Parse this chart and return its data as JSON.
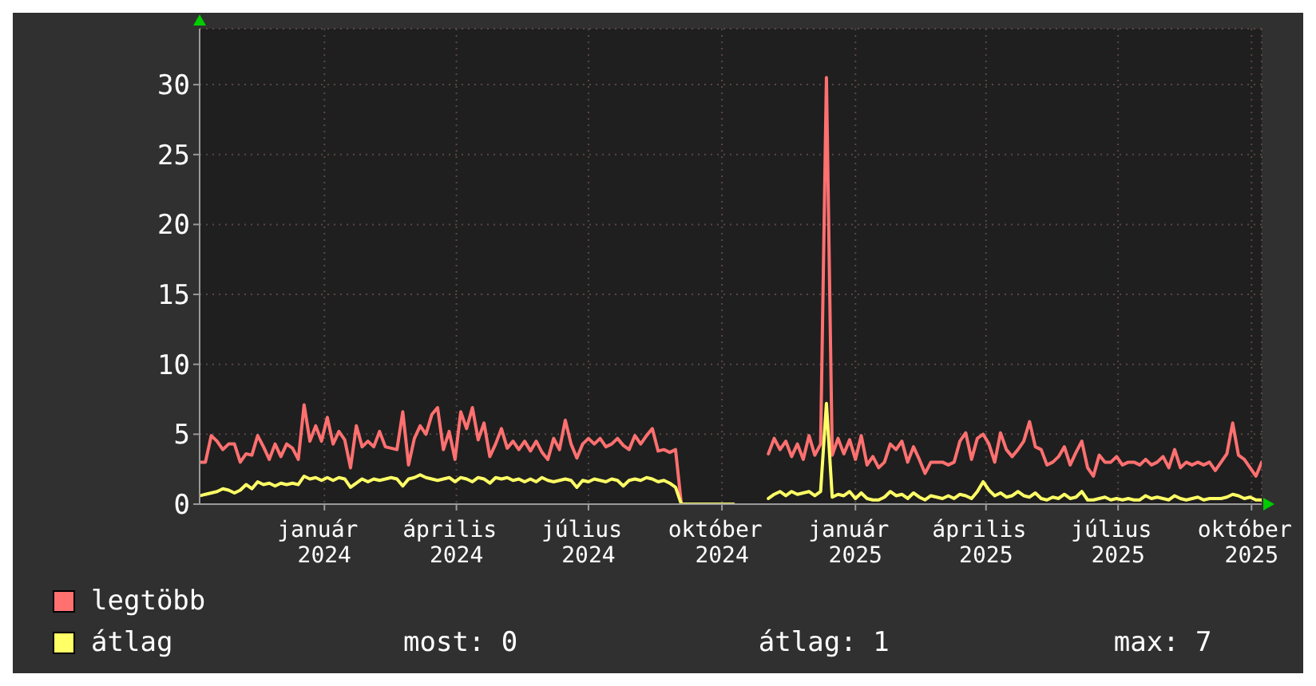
{
  "chart_data": {
    "type": "line",
    "x": [
      "2023-10-07",
      "2023-10-11",
      "2023-10-15",
      "2023-10-19",
      "2023-10-23",
      "2023-10-27",
      "2023-10-31",
      "2023-11-04",
      "2023-11-08",
      "2023-11-12",
      "2023-11-16",
      "2023-11-20",
      "2023-11-24",
      "2023-11-28",
      "2023-12-02",
      "2023-12-06",
      "2023-12-10",
      "2023-12-14",
      "2023-12-18",
      "2023-12-22",
      "2023-12-26",
      "2023-12-30",
      "2024-01-03",
      "2024-01-07",
      "2024-01-11",
      "2024-01-15",
      "2024-01-19",
      "2024-01-23",
      "2024-01-27",
      "2024-01-31",
      "2024-02-04",
      "2024-02-08",
      "2024-02-12",
      "2024-02-16",
      "2024-02-20",
      "2024-02-24",
      "2024-02-28",
      "2024-03-03",
      "2024-03-07",
      "2024-03-11",
      "2024-03-15",
      "2024-03-19",
      "2024-03-23",
      "2024-03-27",
      "2024-03-31",
      "2024-04-04",
      "2024-04-08",
      "2024-04-12",
      "2024-04-16",
      "2024-04-20",
      "2024-04-24",
      "2024-04-28",
      "2024-05-02",
      "2024-05-06",
      "2024-05-10",
      "2024-05-14",
      "2024-05-18",
      "2024-05-22",
      "2024-05-26",
      "2024-05-30",
      "2024-06-03",
      "2024-06-07",
      "2024-06-11",
      "2024-06-15",
      "2024-06-19",
      "2024-06-23",
      "2024-06-27",
      "2024-07-01",
      "2024-07-05",
      "2024-07-09",
      "2024-07-13",
      "2024-07-17",
      "2024-07-21",
      "2024-07-25",
      "2024-07-29",
      "2024-08-02",
      "2024-08-06",
      "2024-08-10",
      "2024-08-14",
      "2024-08-18",
      "2024-08-22",
      "2024-08-26",
      "2024-08-30",
      "2024-09-03",
      "2024-09-07",
      "2024-09-11",
      "2024-09-15",
      "2024-09-19",
      "2024-09-23",
      "2024-09-27",
      "2024-10-01",
      "2024-10-05",
      "2024-10-09",
      "2024-10-13",
      "2024-10-17",
      "2024-10-21",
      "2024-10-25",
      "2024-10-29",
      "2024-11-02",
      "2024-11-06",
      "2024-11-10",
      "2024-11-14",
      "2024-11-18",
      "2024-11-22",
      "2024-11-26",
      "2024-11-30",
      "2024-12-04",
      "2024-12-08",
      "2024-12-12",
      "2024-12-16",
      "2024-12-20",
      "2024-12-24",
      "2024-12-28",
      "2025-01-01",
      "2025-01-05",
      "2025-01-09",
      "2025-01-13",
      "2025-01-17",
      "2025-01-21",
      "2025-01-25",
      "2025-01-29",
      "2025-02-02",
      "2025-02-06",
      "2025-02-10",
      "2025-02-14",
      "2025-02-18",
      "2025-02-22",
      "2025-02-26",
      "2025-03-02",
      "2025-03-06",
      "2025-03-10",
      "2025-03-14",
      "2025-03-18",
      "2025-03-22",
      "2025-03-26",
      "2025-03-30",
      "2025-04-03",
      "2025-04-07",
      "2025-04-11",
      "2025-04-15",
      "2025-04-19",
      "2025-04-23",
      "2025-04-27",
      "2025-05-01",
      "2025-05-05",
      "2025-05-09",
      "2025-05-13",
      "2025-05-17",
      "2025-05-21",
      "2025-05-25",
      "2025-05-29",
      "2025-06-02",
      "2025-06-06",
      "2025-06-10",
      "2025-06-14",
      "2025-06-18",
      "2025-06-22",
      "2025-06-26",
      "2025-06-30",
      "2025-07-04",
      "2025-07-08",
      "2025-07-12",
      "2025-07-16",
      "2025-07-20",
      "2025-07-24",
      "2025-07-28",
      "2025-08-01",
      "2025-08-05",
      "2025-08-09",
      "2025-08-13",
      "2025-08-17",
      "2025-08-21",
      "2025-08-25",
      "2025-08-29",
      "2025-09-02",
      "2025-09-06",
      "2025-09-10",
      "2025-09-14",
      "2025-09-18",
      "2025-09-22",
      "2025-09-26",
      "2025-09-30",
      "2025-10-04",
      "2025-10-08"
    ],
    "series": [
      {
        "name": "legtöbb",
        "color": "#ff7070",
        "values": [
          3.0,
          3.0,
          4.9,
          4.5,
          3.9,
          4.3,
          4.3,
          3.0,
          3.6,
          3.5,
          4.9,
          4.1,
          3.2,
          4.3,
          3.4,
          4.3,
          4.0,
          3.2,
          7.1,
          4.5,
          5.6,
          4.5,
          6.2,
          4.3,
          5.2,
          4.6,
          2.6,
          5.6,
          4.1,
          4.5,
          4.1,
          5.2,
          4.1,
          4.0,
          3.9,
          6.6,
          2.8,
          4.7,
          5.6,
          5.0,
          6.4,
          6.9,
          3.9,
          5.2,
          3.2,
          6.6,
          5.4,
          6.9,
          4.6,
          5.8,
          3.4,
          4.3,
          5.4,
          4.0,
          4.5,
          3.9,
          4.5,
          3.8,
          4.5,
          3.7,
          3.2,
          4.7,
          3.9,
          6.0,
          4.3,
          3.3,
          4.3,
          4.7,
          4.3,
          4.7,
          4.1,
          4.3,
          4.7,
          4.2,
          3.9,
          4.9,
          4.3,
          4.9,
          5.4,
          3.8,
          3.9,
          3.7,
          3.9,
          0,
          0,
          0,
          0,
          0,
          0,
          0,
          0,
          0,
          0,
          null,
          null,
          null,
          null,
          null,
          3.6,
          4.7,
          3.9,
          4.5,
          3.4,
          4.3,
          3.2,
          4.9,
          3.5,
          4.3,
          30.5,
          3.5,
          4.7,
          3.6,
          4.6,
          3.2,
          4.9,
          2.8,
          3.4,
          2.6,
          3.0,
          4.3,
          3.9,
          4.5,
          3.0,
          4.1,
          3.2,
          2.2,
          3.0,
          3.0,
          3.0,
          2.8,
          3.0,
          4.5,
          5.1,
          3.2,
          4.7,
          5.0,
          4.3,
          3.0,
          5.1,
          3.9,
          3.4,
          3.9,
          4.5,
          5.9,
          4.1,
          3.9,
          2.8,
          3.0,
          3.4,
          4.1,
          2.8,
          3.7,
          4.5,
          2.6,
          2.0,
          3.5,
          3.0,
          3.0,
          3.4,
          2.8,
          3.0,
          3.0,
          2.8,
          3.2,
          2.8,
          3.0,
          3.4,
          2.6,
          3.9,
          2.6,
          3.0,
          2.8,
          3.0,
          2.8,
          3.0,
          2.4,
          3.0,
          3.6,
          5.8,
          3.5,
          3.2,
          2.6,
          2.0,
          3.0
        ]
      },
      {
        "name": "átlag",
        "color": "#ffff66",
        "values": [
          0.6,
          0.7,
          0.8,
          0.9,
          1.1,
          1.0,
          0.8,
          1.0,
          1.4,
          1.1,
          1.6,
          1.4,
          1.5,
          1.3,
          1.5,
          1.4,
          1.5,
          1.4,
          2.0,
          1.8,
          1.9,
          1.7,
          1.9,
          1.7,
          1.9,
          1.8,
          1.2,
          1.5,
          1.8,
          1.6,
          1.8,
          1.7,
          1.8,
          1.9,
          1.8,
          1.3,
          1.8,
          1.9,
          2.1,
          1.9,
          1.8,
          1.7,
          1.8,
          1.9,
          1.6,
          1.9,
          1.8,
          1.6,
          1.9,
          1.8,
          1.5,
          1.9,
          1.8,
          1.9,
          1.7,
          1.8,
          1.6,
          1.8,
          1.6,
          1.9,
          1.7,
          1.6,
          1.7,
          1.8,
          1.7,
          1.2,
          1.7,
          1.6,
          1.8,
          1.7,
          1.6,
          1.8,
          1.7,
          1.3,
          1.7,
          1.8,
          1.7,
          1.9,
          1.8,
          1.6,
          1.7,
          1.5,
          1.2,
          0,
          0,
          0,
          0,
          0,
          0,
          0,
          0,
          0,
          0,
          null,
          null,
          null,
          null,
          null,
          0.4,
          0.7,
          0.9,
          0.6,
          0.9,
          0.7,
          0.8,
          0.9,
          0.6,
          0.9,
          7.2,
          0.5,
          0.7,
          0.6,
          0.9,
          0.4,
          0.8,
          0.4,
          0.3,
          0.3,
          0.5,
          0.9,
          0.6,
          0.7,
          0.4,
          0.8,
          0.5,
          0.3,
          0.6,
          0.5,
          0.4,
          0.6,
          0.4,
          0.7,
          0.6,
          0.4,
          0.9,
          1.6,
          1.0,
          0.6,
          0.8,
          0.5,
          0.6,
          0.9,
          0.6,
          0.5,
          0.8,
          0.4,
          0.3,
          0.5,
          0.4,
          0.7,
          0.4,
          0.5,
          0.9,
          0.3,
          0.3,
          0.4,
          0.5,
          0.3,
          0.4,
          0.3,
          0.4,
          0.3,
          0.3,
          0.6,
          0.4,
          0.5,
          0.4,
          0.3,
          0.6,
          0.4,
          0.3,
          0.4,
          0.5,
          0.3,
          0.4,
          0.4,
          0.4,
          0.5,
          0.7,
          0.6,
          0.4,
          0.5,
          0.3,
          0.3
        ]
      }
    ],
    "xlim": [
      "2023-10-07",
      "2025-10-08"
    ],
    "xticks": [
      {
        "value": "2024-01-01",
        "label": "január 2024"
      },
      {
        "value": "2024-04-01",
        "label": "április 2024"
      },
      {
        "value": "2024-07-01",
        "label": "július 2024"
      },
      {
        "value": "2024-10-01",
        "label": "október 2024"
      },
      {
        "value": "2025-01-01",
        "label": "január 2025"
      },
      {
        "value": "2025-04-01",
        "label": "április 2025"
      },
      {
        "value": "2025-07-01",
        "label": "július 2025"
      },
      {
        "value": "2025-10-01",
        "label": "október 2025"
      }
    ],
    "ylim": [
      0,
      34
    ],
    "yticks": [
      0,
      5,
      10,
      15,
      20,
      25,
      30
    ],
    "grid": true,
    "legend": "bottom left",
    "annotations": [
      "most: 0",
      "átlag: 1",
      "max: 7"
    ]
  }
}
